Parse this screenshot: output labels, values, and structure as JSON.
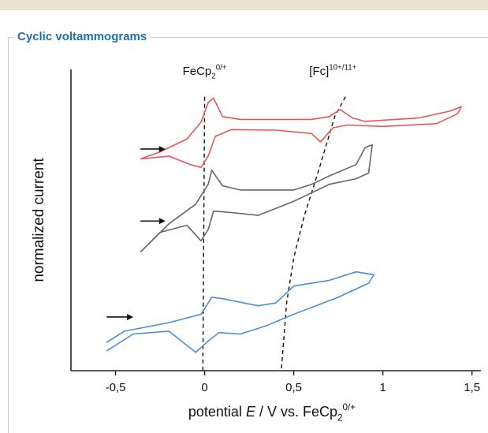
{
  "panel": {
    "title": "Cyclic voltammograms"
  },
  "chart_data": {
    "type": "line",
    "title": "",
    "xlabel_parts": [
      "potential ",
      "E",
      " / V vs. FeCp",
      "2",
      "0/+"
    ],
    "ylabel": "normalized current",
    "xlim": [
      -0.75,
      1.55
    ],
    "ylim": [
      0,
      1
    ],
    "xticks": [
      -0.5,
      0,
      0.5,
      1,
      1.5
    ],
    "xtick_labels": [
      "-0,5",
      "0",
      "0,5",
      "1",
      "1,5"
    ],
    "grid": false,
    "legend": "none",
    "annotations": [
      {
        "id": "fecp2",
        "parts": [
          "FeCp",
          "2",
          "0/+"
        ],
        "x": 0.0
      },
      {
        "id": "fc",
        "parts": [
          "[Fc]",
          "10+/11+"
        ],
        "x": 0.72
      }
    ],
    "dashed_guides": [
      {
        "name": "FeCp2 0/+",
        "points": [
          [
            0.0,
            0.97
          ],
          [
            -0.01,
            0.0
          ]
        ]
      },
      {
        "name": "[Fc]10+/11+",
        "points": [
          [
            0.79,
            0.97
          ],
          [
            0.73,
            0.9
          ],
          [
            0.64,
            0.71
          ],
          [
            0.56,
            0.55
          ],
          [
            0.5,
            0.4
          ],
          [
            0.46,
            0.24
          ],
          [
            0.43,
            0.0
          ]
        ]
      }
    ],
    "series": [
      {
        "color": "#e8555a",
        "arrow": {
          "x": [
            -0.36,
            -0.22
          ],
          "y": 0.785
        },
        "points": [
          [
            -0.36,
            0.75
          ],
          [
            -0.2,
            0.76
          ],
          [
            -0.08,
            0.73
          ],
          [
            -0.02,
            0.72
          ],
          [
            0.02,
            0.76
          ],
          [
            0.06,
            0.83
          ],
          [
            0.15,
            0.854
          ],
          [
            0.4,
            0.852
          ],
          [
            0.6,
            0.84
          ],
          [
            0.65,
            0.81
          ],
          [
            0.72,
            0.86
          ],
          [
            0.8,
            0.87
          ],
          [
            1.0,
            0.865
          ],
          [
            1.3,
            0.875
          ],
          [
            1.42,
            0.91
          ],
          [
            1.44,
            0.935
          ],
          [
            1.38,
            0.92
          ],
          [
            1.2,
            0.895
          ],
          [
            0.9,
            0.883
          ],
          [
            0.83,
            0.895
          ],
          [
            0.76,
            0.925
          ],
          [
            0.7,
            0.9
          ],
          [
            0.6,
            0.89
          ],
          [
            0.2,
            0.89
          ],
          [
            0.1,
            0.9
          ],
          [
            0.05,
            0.965
          ],
          [
            0.02,
            0.95
          ],
          [
            -0.02,
            0.88
          ],
          [
            -0.1,
            0.82
          ],
          [
            -0.25,
            0.775
          ],
          [
            -0.36,
            0.75
          ]
        ]
      },
      {
        "color": "#666666",
        "arrow": {
          "x": [
            -0.36,
            -0.22
          ],
          "y": 0.53
        },
        "points": [
          [
            -0.36,
            0.42
          ],
          [
            -0.25,
            0.49
          ],
          [
            -0.1,
            0.515
          ],
          [
            -0.02,
            0.46
          ],
          [
            0.02,
            0.5
          ],
          [
            0.05,
            0.565
          ],
          [
            0.15,
            0.56
          ],
          [
            0.3,
            0.55
          ],
          [
            0.5,
            0.6
          ],
          [
            0.7,
            0.66
          ],
          [
            0.85,
            0.68
          ],
          [
            0.92,
            0.7
          ],
          [
            0.94,
            0.8
          ],
          [
            0.9,
            0.79
          ],
          [
            0.85,
            0.73
          ],
          [
            0.7,
            0.69
          ],
          [
            0.6,
            0.66
          ],
          [
            0.5,
            0.64
          ],
          [
            0.3,
            0.64
          ],
          [
            0.2,
            0.64
          ],
          [
            0.1,
            0.655
          ],
          [
            0.04,
            0.71
          ],
          [
            0.02,
            0.66
          ],
          [
            -0.05,
            0.59
          ],
          [
            -0.2,
            0.52
          ],
          [
            -0.36,
            0.42
          ]
        ]
      },
      {
        "color": "#4a8fd6",
        "arrow": {
          "x": [
            -0.55,
            -0.4
          ],
          "y": 0.19
        },
        "points": [
          [
            -0.55,
            0.07
          ],
          [
            -0.4,
            0.13
          ],
          [
            -0.2,
            0.14
          ],
          [
            -0.05,
            0.065
          ],
          [
            0.02,
            0.105
          ],
          [
            0.08,
            0.135
          ],
          [
            0.2,
            0.13
          ],
          [
            0.35,
            0.16
          ],
          [
            0.5,
            0.2
          ],
          [
            0.75,
            0.26
          ],
          [
            0.92,
            0.31
          ],
          [
            0.95,
            0.34
          ],
          [
            0.85,
            0.35
          ],
          [
            0.7,
            0.32
          ],
          [
            0.5,
            0.3
          ],
          [
            0.4,
            0.24
          ],
          [
            0.3,
            0.23
          ],
          [
            0.1,
            0.255
          ],
          [
            0.04,
            0.26
          ],
          [
            -0.02,
            0.2
          ],
          [
            -0.2,
            0.17
          ],
          [
            -0.45,
            0.14
          ],
          [
            -0.55,
            0.1
          ]
        ]
      }
    ]
  }
}
